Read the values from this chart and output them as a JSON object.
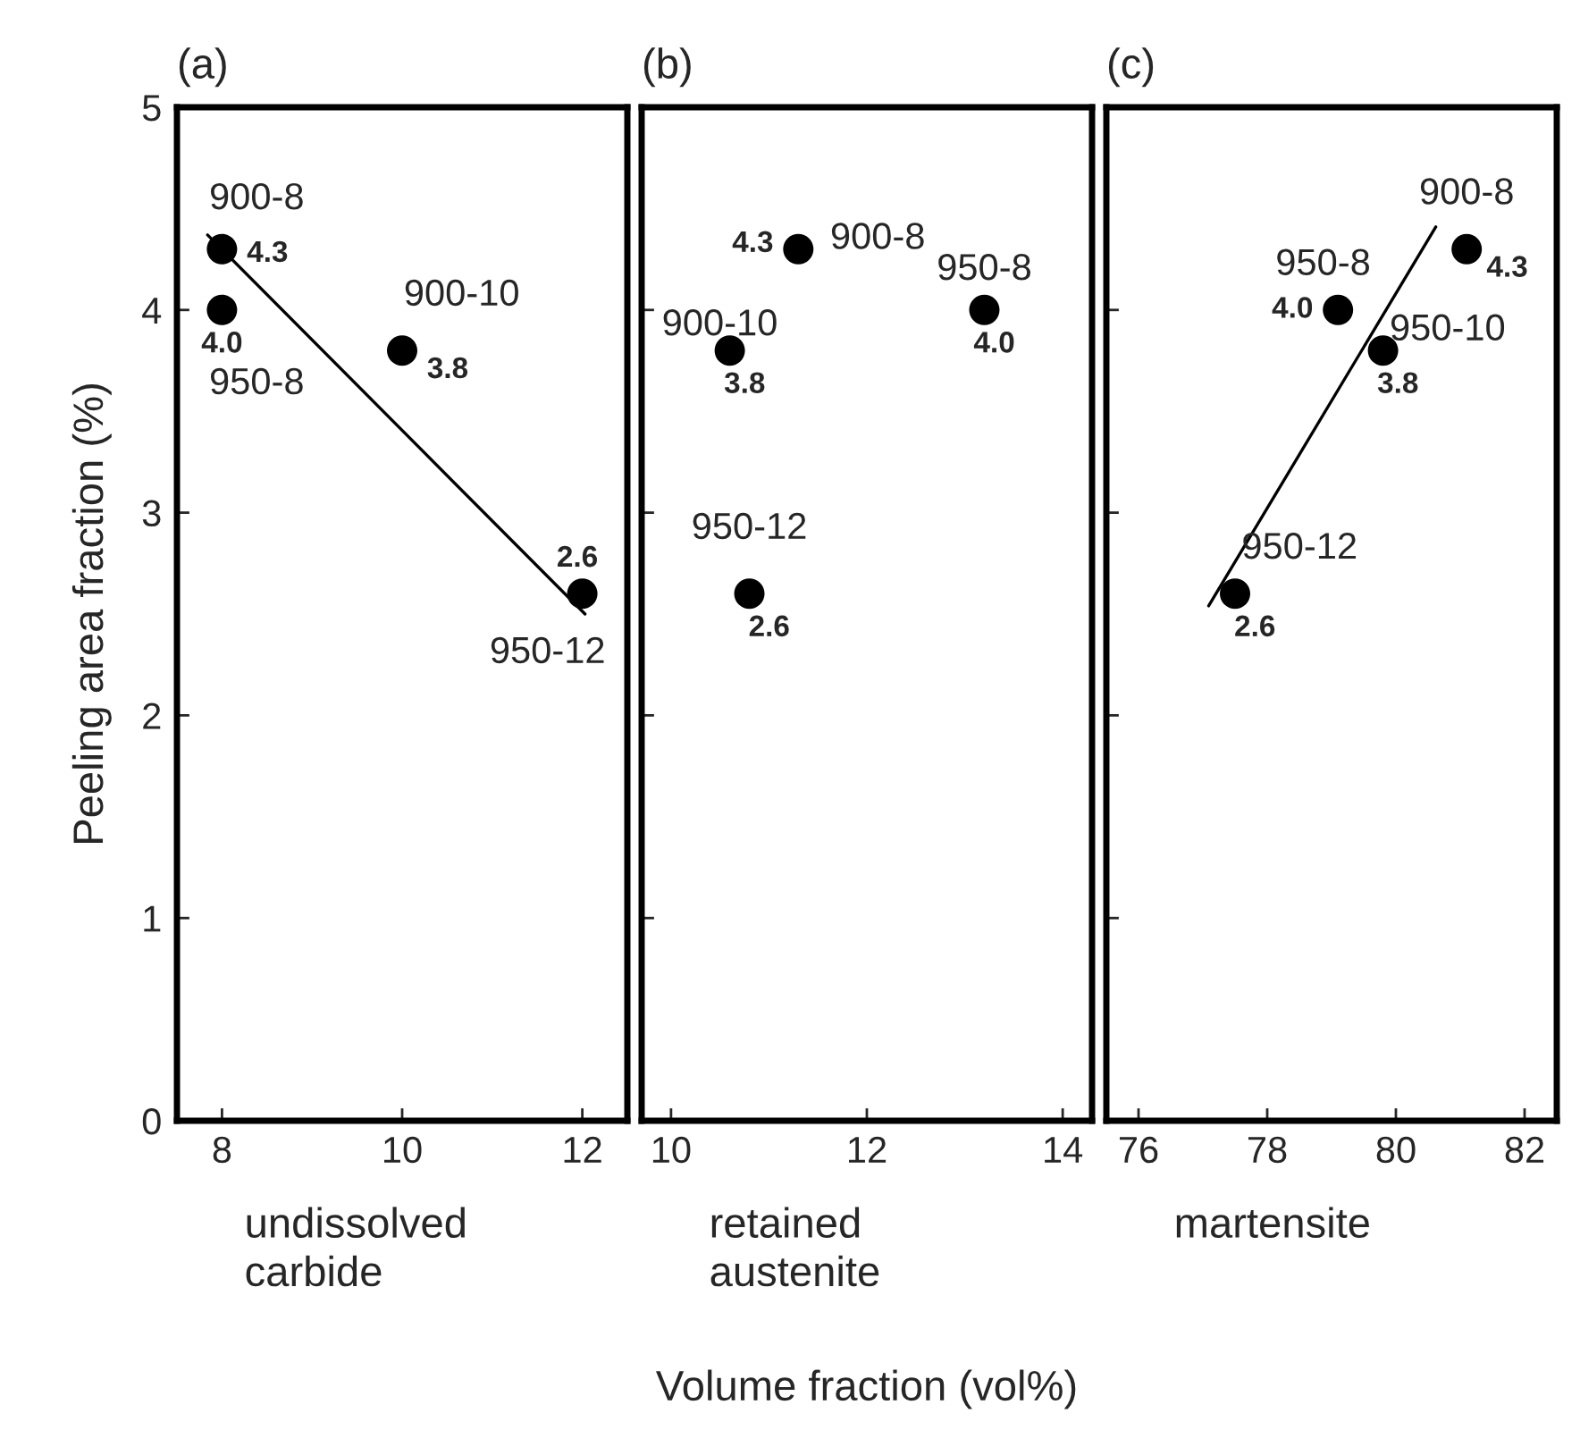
{
  "chart_data": [
    {
      "type": "scatter",
      "title": "(a)",
      "xlabel": "undissolved\ncarbide",
      "ylabel": "Peeling area fraction (%)",
      "xlim": [
        7.5,
        12.5
      ],
      "xticks": [
        8,
        10,
        12
      ],
      "ylim": [
        0,
        5
      ],
      "yticks": [
        0,
        1,
        2,
        3,
        4,
        5
      ],
      "grid": false,
      "legend": false,
      "series": [
        {
          "color": "#000000",
          "marker": "circle",
          "x": [
            8,
            8,
            10,
            12
          ],
          "values": [
            4.3,
            4.0,
            3.8,
            2.6
          ],
          "value_labels": [
            "4.3",
            "4.0",
            "3.8",
            "2.6"
          ]
        },
        {
          "type": "line",
          "color": "#000000",
          "marker": "none",
          "line_style": "solid",
          "x": [
            7.84,
            12.03
          ],
          "values": [
            4.37,
            2.5
          ]
        }
      ],
      "annotations": [
        {
          "text": "900-8",
          "x": 8,
          "y": 4.3
        },
        {
          "text": "950-8",
          "x": 8,
          "y": 4.0
        },
        {
          "text": "900-10",
          "x": 10,
          "y": 3.8
        },
        {
          "text": "950-12",
          "x": 12,
          "y": 2.6
        }
      ]
    },
    {
      "type": "scatter",
      "title": "(b)",
      "xlabel": "retained\naustenite",
      "xlim": [
        9.7,
        14.3
      ],
      "xticks": [
        10,
        12,
        14
      ],
      "ylim": [
        0,
        5
      ],
      "yticks": [
        0,
        1,
        2,
        3,
        4,
        5
      ],
      "tick_labels": "x",
      "grid": false,
      "legend": false,
      "series": [
        {
          "color": "#000000",
          "marker": "circle",
          "x": [
            11.3,
            13.2,
            10.6,
            10.8
          ],
          "values": [
            4.3,
            4.0,
            3.8,
            2.6
          ],
          "value_labels": [
            "4.3",
            "4.0",
            "3.8",
            "2.6"
          ]
        }
      ],
      "annotations": [
        {
          "text": "900-8",
          "x": 11.3,
          "y": 4.3
        },
        {
          "text": "950-8",
          "x": 13.2,
          "y": 4.0
        },
        {
          "text": "900-10",
          "x": 10.6,
          "y": 3.8
        },
        {
          "text": "950-12",
          "x": 10.8,
          "y": 2.6
        },
        "Volume fraction (vol%)"
      ]
    },
    {
      "type": "scatter",
      "title": "(c)",
      "xlabel": "martensite",
      "xlim": [
        75.5,
        82.5
      ],
      "xticks": [
        76,
        78,
        80,
        82
      ],
      "ylim": [
        0,
        5
      ],
      "yticks": [
        0,
        1,
        2,
        3,
        4,
        5
      ],
      "tick_labels": "x",
      "grid": false,
      "legend": false,
      "series": [
        {
          "color": "#000000",
          "marker": "circle",
          "x": [
            81.1,
            79.1,
            79.8,
            77.5
          ],
          "values": [
            4.3,
            4.0,
            3.8,
            2.6
          ],
          "value_labels": [
            "4.3",
            "4.0",
            "3.8",
            "2.6"
          ]
        },
        {
          "type": "line",
          "color": "#000000",
          "marker": "none",
          "line_style": "solid",
          "x": [
            77.09,
            80.62
          ],
          "values": [
            2.54,
            4.41
          ]
        }
      ],
      "annotations": [
        {
          "text": "900-8",
          "x": 81.1,
          "y": 4.3
        },
        {
          "text": "950-8",
          "x": 79.1,
          "y": 4.0
        },
        {
          "text": "950-10",
          "x": 79.8,
          "y": 3.8
        },
        {
          "text": "950-12",
          "x": 77.5,
          "y": 2.6
        }
      ]
    }
  ]
}
